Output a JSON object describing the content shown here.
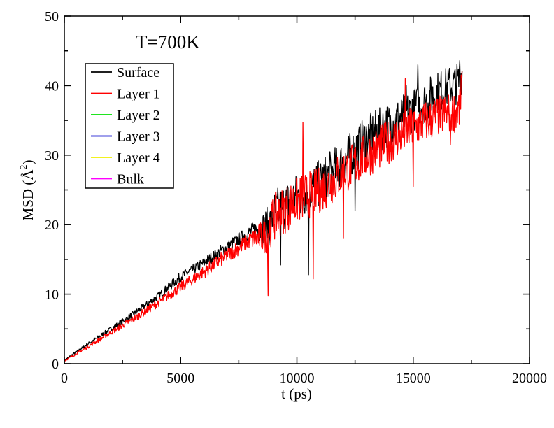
{
  "chart_data": {
    "type": "line",
    "annotation": "T=700K",
    "xlabel": "t (ps)",
    "ylabel": {
      "pre": "MSD (",
      "unit": "Å",
      "sup": "2",
      "post": ")"
    },
    "xlim": [
      0,
      20000
    ],
    "ylim": [
      0,
      50
    ],
    "xticks": [
      0,
      5000,
      10000,
      15000,
      20000
    ],
    "yticks": [
      0,
      10,
      20,
      30,
      40,
      50
    ],
    "grid": false,
    "legend_placement": "top-left",
    "noise_seed": 7,
    "series": [
      {
        "name": "Surface",
        "color": "#000000",
        "trend": [
          [
            0,
            0.5
          ],
          [
            1000,
            2.8
          ],
          [
            2000,
            5.0
          ],
          [
            3000,
            7.2
          ],
          [
            4000,
            9.6
          ],
          [
            5000,
            12.5
          ],
          [
            6000,
            14.5
          ],
          [
            7000,
            16.8
          ],
          [
            8000,
            19.0
          ],
          [
            8800,
            19.8
          ],
          [
            9000,
            21.5
          ],
          [
            10000,
            24.0
          ],
          [
            11000,
            26.0
          ],
          [
            12000,
            29.0
          ],
          [
            13000,
            32.5
          ],
          [
            14000,
            34.5
          ],
          [
            15000,
            36.5
          ],
          [
            16000,
            39.0
          ],
          [
            17000,
            40.5
          ],
          [
            17100,
            42.0
          ]
        ],
        "noise": [
          [
            0,
            0.1
          ],
          [
            5000,
            0.7
          ],
          [
            8000,
            1.0
          ],
          [
            9000,
            3.5
          ],
          [
            17100,
            3.0
          ]
        ],
        "spikes": [
          [
            9300,
            14.2
          ],
          [
            10500,
            12.8
          ],
          [
            12500,
            22.0
          ],
          [
            14700,
            40.0
          ],
          [
            15200,
            43.0
          ],
          [
            17000,
            43.6
          ]
        ]
      },
      {
        "name": "Layer 1",
        "color": "#ff0000",
        "trend": [
          [
            0,
            0.4
          ],
          [
            1000,
            2.4
          ],
          [
            2000,
            4.5
          ],
          [
            3000,
            6.5
          ],
          [
            4000,
            8.7
          ],
          [
            5000,
            11.0
          ],
          [
            6000,
            13.2
          ],
          [
            7000,
            15.6
          ],
          [
            8000,
            17.8
          ],
          [
            8700,
            18.5
          ],
          [
            9000,
            21.0
          ],
          [
            10000,
            23.5
          ],
          [
            11000,
            25.0
          ],
          [
            12000,
            27.5
          ],
          [
            13000,
            30.0
          ],
          [
            14000,
            32.0
          ],
          [
            15000,
            34.0
          ],
          [
            16000,
            35.5
          ],
          [
            17000,
            36.5
          ],
          [
            17100,
            40.5
          ]
        ],
        "noise": [
          [
            0,
            0.1
          ],
          [
            5000,
            0.8
          ],
          [
            8000,
            1.2
          ],
          [
            9000,
            3.5
          ],
          [
            17100,
            3.0
          ]
        ],
        "spikes": [
          [
            8750,
            9.8
          ],
          [
            10250,
            34.7
          ],
          [
            10700,
            12.2
          ],
          [
            12000,
            18.0
          ],
          [
            14650,
            41.0
          ],
          [
            15000,
            25.5
          ],
          [
            16600,
            31.5
          ],
          [
            17050,
            41.5
          ]
        ]
      },
      {
        "name": "Layer 2",
        "color": "#00e000"
      },
      {
        "name": "Layer 3",
        "color": "#0000cc"
      },
      {
        "name": "Layer 4",
        "color": "#f0f000"
      },
      {
        "name": "Bulk",
        "color": "#ff00ff"
      }
    ]
  }
}
